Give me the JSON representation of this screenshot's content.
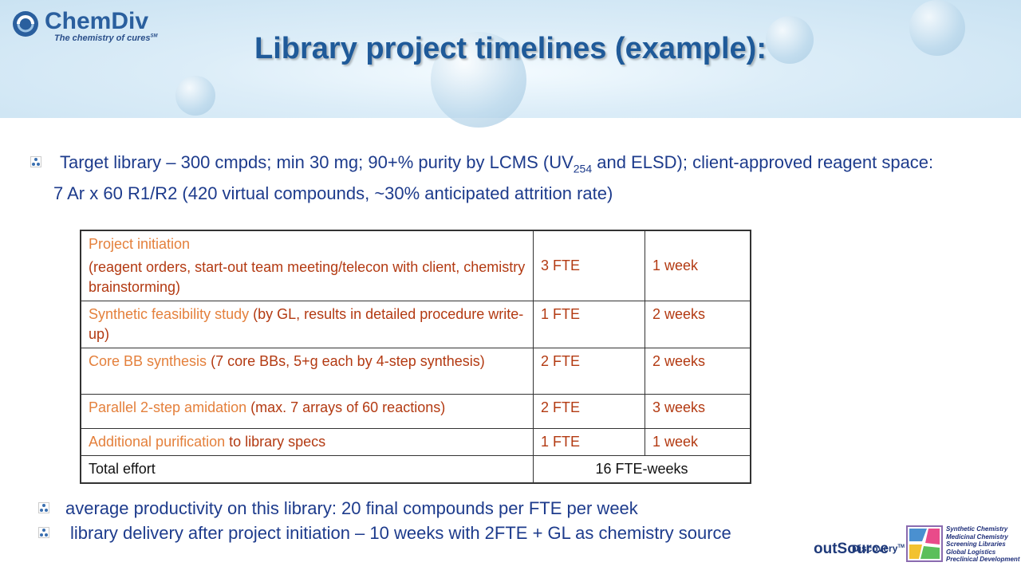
{
  "header": {
    "logo": "ChemDiv",
    "tagline": "The chemistry of cures",
    "tagline_mark": "SM",
    "title": "Library project timelines (example):"
  },
  "intro": {
    "before": "Target library – 300 cmpds; min 30 mg; 90+% purity by LCMS (UV",
    "subscript": "254",
    "after": " and ELSD); client-approved reagent space: 7 Ar x 60 R1/R2 (420 virtual compounds, ~30% anticipated attrition rate)"
  },
  "table": {
    "rows": [
      {
        "task": "Project initiation",
        "details": "(reagent orders, start-out team meeting/telecon with client, chemistry brainstorming)",
        "fte": "3 FTE",
        "duration": "1 week"
      },
      {
        "task": "Synthetic feasibility study",
        "details": "(by GL, results in detailed procedure write-up)",
        "fte": "1 FTE",
        "duration": "2 weeks"
      },
      {
        "task": "Core BB synthesis",
        "details": "(7 core BBs, 5+g each by 4-step synthesis)",
        "fte": "2 FTE",
        "duration": "2 weeks"
      },
      {
        "task": "Parallel 2-step amidation",
        "details": "(max. 7 arrays of 60 reactions)",
        "fte": "2 FTE",
        "duration": "3 weeks"
      },
      {
        "task": "Additional purification",
        "details": "to library specs",
        "fte": "1 FTE",
        "duration": "1 week"
      }
    ],
    "total": {
      "label": "Total effort",
      "value": "16 FTE-weeks"
    }
  },
  "notes": [
    "average productivity on this library: 20 final compounds per FTE per week",
    "library delivery after project initiation – 10 weeks with 2FTE + GL as chemistry source"
  ],
  "footer_logo": {
    "brand_top": "Discovery",
    "mark": "TM",
    "brand": "outSource",
    "services": [
      "Synthetic Chemistry",
      "Medicinal Chemistry",
      "Screening Libraries",
      "Global Logistics",
      "Preclinical Development"
    ]
  }
}
